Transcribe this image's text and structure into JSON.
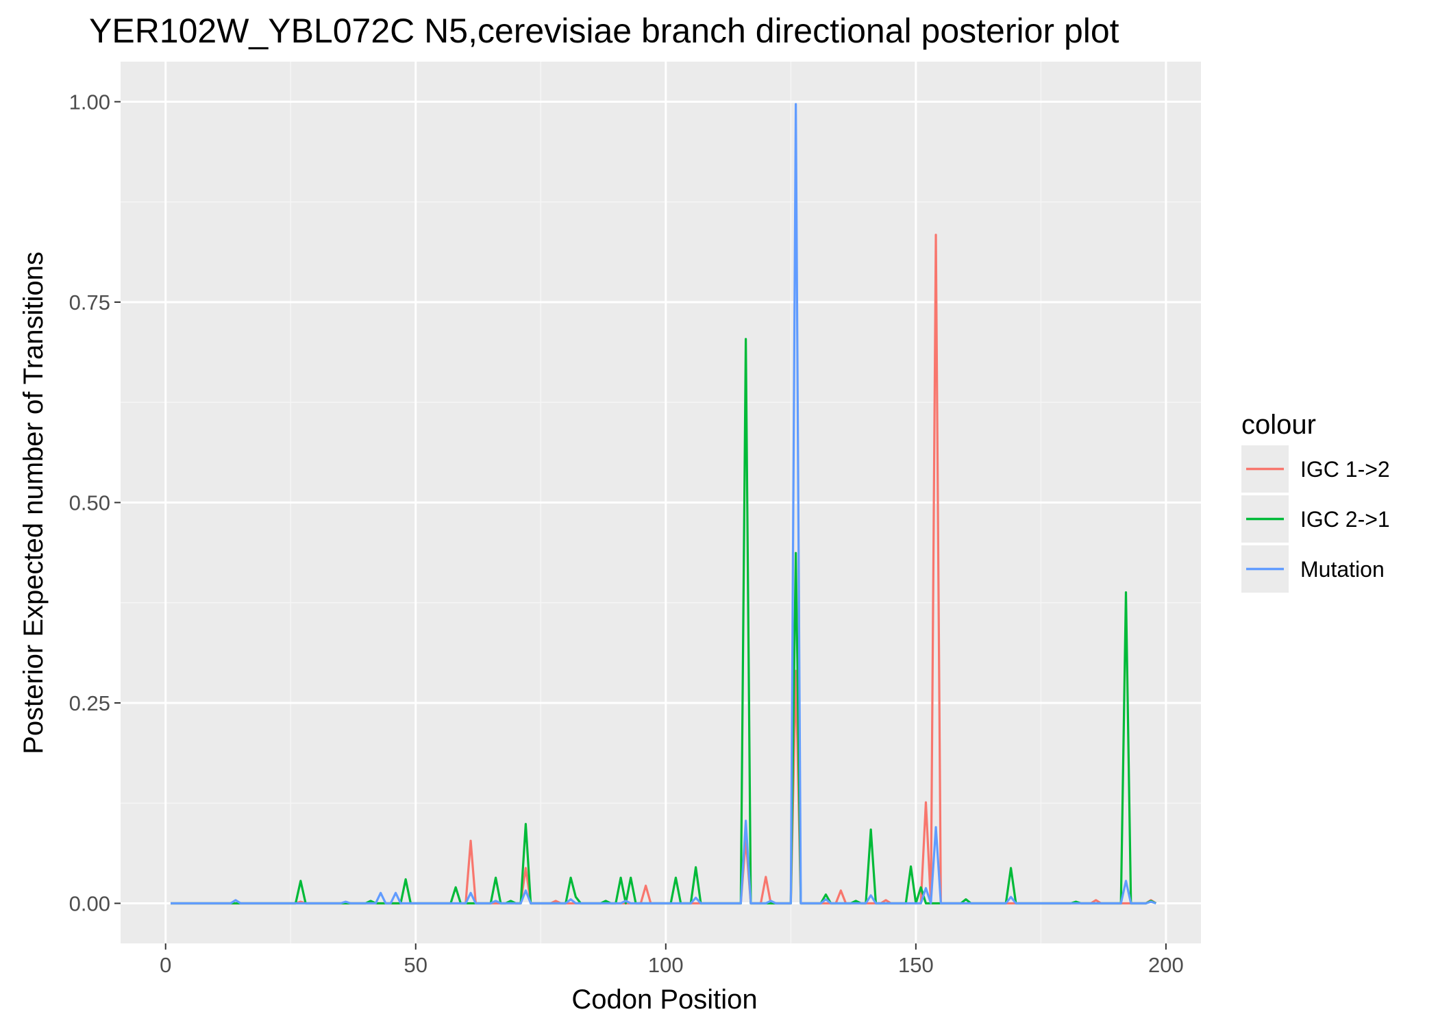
{
  "chart_data": {
    "type": "line",
    "title": "YER102W_YBL072C N5,cerevisiae branch directional posterior plot",
    "xlabel": "Codon Position",
    "ylabel": "Posterior Expected number of Transitions",
    "xlim": [
      -9,
      207
    ],
    "ylim": [
      -0.05,
      1.05
    ],
    "x_ticks": [
      0,
      50,
      100,
      150,
      200
    ],
    "x_tick_labels": [
      "0",
      "50",
      "100",
      "150",
      "200"
    ],
    "y_ticks": [
      0,
      0.25,
      0.5,
      0.75,
      1.0
    ],
    "y_tick_labels": [
      "0.00",
      "0.25",
      "0.50",
      "0.75",
      "1.00"
    ],
    "grid": true,
    "legend_title": "colour",
    "legend_position": "right",
    "x_range": [
      1,
      198
    ],
    "series": [
      {
        "name": "IGC 1->2",
        "color": "#f8766d",
        "points": [
          [
            1,
            0
          ],
          [
            26,
            0
          ],
          [
            27,
            0.002
          ],
          [
            28,
            0
          ],
          [
            60,
            0
          ],
          [
            61,
            0.078
          ],
          [
            62,
            0
          ],
          [
            71,
            0
          ],
          [
            72,
            0.044
          ],
          [
            73,
            0
          ],
          [
            77,
            0
          ],
          [
            78,
            0.003
          ],
          [
            79,
            0
          ],
          [
            95,
            0
          ],
          [
            96,
            0.022
          ],
          [
            97,
            0
          ],
          [
            115,
            0
          ],
          [
            116,
            0.08
          ],
          [
            117,
            0
          ],
          [
            119,
            0
          ],
          [
            120,
            0.033
          ],
          [
            121,
            0
          ],
          [
            125,
            0
          ],
          [
            126,
            0.29
          ],
          [
            127,
            0
          ],
          [
            134,
            0
          ],
          [
            135,
            0.016
          ],
          [
            136,
            0
          ],
          [
            143,
            0
          ],
          [
            144,
            0.004
          ],
          [
            145,
            0
          ],
          [
            151,
            0
          ],
          [
            152,
            0.126
          ],
          [
            153,
            0
          ],
          [
            154,
            0.834
          ],
          [
            155,
            0
          ],
          [
            185,
            0
          ],
          [
            186,
            0.004
          ],
          [
            187,
            0
          ],
          [
            196,
            0
          ],
          [
            197,
            0.004
          ],
          [
            198,
            0
          ]
        ]
      },
      {
        "name": "IGC 2->1",
        "color": "#00ba38",
        "points": [
          [
            1,
            0
          ],
          [
            26,
            0
          ],
          [
            27,
            0.028
          ],
          [
            28,
            0
          ],
          [
            40,
            0
          ],
          [
            41,
            0.003
          ],
          [
            42,
            0
          ],
          [
            47,
            0
          ],
          [
            48,
            0.03
          ],
          [
            49,
            0
          ],
          [
            57,
            0
          ],
          [
            58,
            0.02
          ],
          [
            59,
            0
          ],
          [
            65,
            0
          ],
          [
            66,
            0.032
          ],
          [
            67,
            0
          ],
          [
            68,
            0
          ],
          [
            69,
            0.003
          ],
          [
            70,
            0
          ],
          [
            71,
            0
          ],
          [
            72,
            0.099
          ],
          [
            73,
            0
          ],
          [
            80,
            0
          ],
          [
            81,
            0.032
          ],
          [
            82,
            0.008
          ],
          [
            83,
            0
          ],
          [
            87,
            0
          ],
          [
            88,
            0.003
          ],
          [
            89,
            0
          ],
          [
            90,
            0
          ],
          [
            91,
            0.032
          ],
          [
            92,
            0
          ],
          [
            93,
            0.032
          ],
          [
            94,
            0
          ],
          [
            101,
            0
          ],
          [
            102,
            0.032
          ],
          [
            103,
            0
          ],
          [
            105,
            0
          ],
          [
            106,
            0.045
          ],
          [
            107,
            0
          ],
          [
            115,
            0
          ],
          [
            116,
            0.704
          ],
          [
            117,
            0
          ],
          [
            125,
            0
          ],
          [
            126,
            0.437
          ],
          [
            127,
            0
          ],
          [
            131,
            0
          ],
          [
            132,
            0.011
          ],
          [
            133,
            0
          ],
          [
            137,
            0
          ],
          [
            138,
            0.003
          ],
          [
            139,
            0
          ],
          [
            140,
            0
          ],
          [
            141,
            0.092
          ],
          [
            142,
            0
          ],
          [
            148,
            0
          ],
          [
            149,
            0.046
          ],
          [
            150,
            0
          ],
          [
            151,
            0.02
          ],
          [
            152,
            0
          ],
          [
            159,
            0
          ],
          [
            160,
            0.005
          ],
          [
            161,
            0
          ],
          [
            168,
            0
          ],
          [
            169,
            0.044
          ],
          [
            170,
            0
          ],
          [
            181,
            0
          ],
          [
            182,
            0.002
          ],
          [
            183,
            0
          ],
          [
            191,
            0
          ],
          [
            192,
            0.388
          ],
          [
            193,
            0
          ],
          [
            196,
            0
          ],
          [
            197,
            0.003
          ],
          [
            198,
            0
          ]
        ]
      },
      {
        "name": "Mutation",
        "color": "#619cff",
        "points": [
          [
            1,
            0
          ],
          [
            13,
            0
          ],
          [
            14,
            0.004
          ],
          [
            15,
            0
          ],
          [
            35,
            0
          ],
          [
            36,
            0.002
          ],
          [
            37,
            0
          ],
          [
            42,
            0
          ],
          [
            43,
            0.013
          ],
          [
            44,
            0
          ],
          [
            45,
            0
          ],
          [
            46,
            0.013
          ],
          [
            47,
            0
          ],
          [
            60,
            0
          ],
          [
            61,
            0.013
          ],
          [
            62,
            0
          ],
          [
            65,
            0
          ],
          [
            66,
            0.003
          ],
          [
            67,
            0
          ],
          [
            71,
            0
          ],
          [
            72,
            0.016
          ],
          [
            73,
            0
          ],
          [
            80,
            0
          ],
          [
            81,
            0.005
          ],
          [
            82,
            0
          ],
          [
            91,
            0
          ],
          [
            92,
            0.003
          ],
          [
            93,
            0
          ],
          [
            105,
            0
          ],
          [
            106,
            0.007
          ],
          [
            107,
            0
          ],
          [
            115,
            0
          ],
          [
            116,
            0.103
          ],
          [
            117,
            0
          ],
          [
            120,
            0
          ],
          [
            121,
            0.003
          ],
          [
            122,
            0
          ],
          [
            125,
            0
          ],
          [
            126,
            0.997
          ],
          [
            127,
            0
          ],
          [
            131,
            0
          ],
          [
            132,
            0.005
          ],
          [
            133,
            0
          ],
          [
            140,
            0
          ],
          [
            141,
            0.01
          ],
          [
            142,
            0
          ],
          [
            151,
            0
          ],
          [
            152,
            0.019
          ],
          [
            153,
            0
          ],
          [
            154,
            0.095
          ],
          [
            155,
            0
          ],
          [
            168,
            0
          ],
          [
            169,
            0.008
          ],
          [
            170,
            0
          ],
          [
            191,
            0
          ],
          [
            192,
            0.028
          ],
          [
            193,
            0
          ],
          [
            196,
            0
          ],
          [
            197,
            0.002
          ],
          [
            198,
            0
          ]
        ]
      }
    ]
  }
}
